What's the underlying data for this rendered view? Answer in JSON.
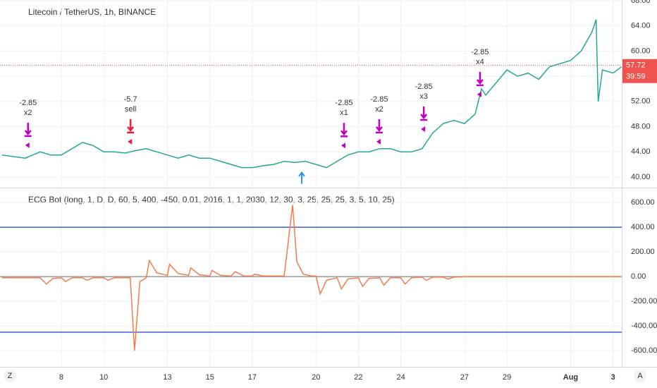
{
  "toolbar": {
    "left": "Z",
    "right": "A"
  },
  "chart_data": [
    {
      "type": "line",
      "title": "Litecoin / TetherUS, 1h, BINANCE",
      "x": [
        5.2,
        6.3,
        7,
        7.5,
        8,
        8.5,
        9,
        9.5,
        10,
        10.5,
        11,
        11.5,
        12,
        12.5,
        13,
        13.5,
        14,
        14.5,
        15,
        15.5,
        16,
        16.5,
        17,
        17.5,
        18,
        18.5,
        19,
        19.5,
        20,
        20.5,
        21,
        21.5,
        22,
        22.5,
        23,
        23.5,
        24,
        24.5,
        25,
        25.5,
        26,
        26.5,
        27,
        27.5,
        27.8,
        28,
        28.5,
        29,
        29.5,
        30,
        30.5,
        31,
        31.5,
        32,
        32.5,
        33,
        33.2,
        33.3,
        33.5,
        34,
        34.4
      ],
      "series": [
        {
          "color": "#26a69a",
          "values": [
            43.5,
            43,
            44,
            43.5,
            43.5,
            44.5,
            45.5,
            45,
            44,
            44,
            43.8,
            44.2,
            44.5,
            44,
            43.5,
            43,
            43.5,
            43,
            43,
            42.5,
            42,
            41.5,
            41.5,
            41.8,
            42,
            42.5,
            42.3,
            42.5,
            42,
            41.5,
            42.5,
            43.5,
            44,
            44,
            44.5,
            44.5,
            44,
            44,
            44.5,
            47,
            48.5,
            49,
            48.5,
            50,
            54,
            53,
            55,
            57,
            56,
            56.5,
            55.5,
            57.5,
            58,
            58.5,
            60,
            63,
            65,
            52,
            57,
            56.5,
            57.5
          ]
        }
      ],
      "ylim": [
        38.43,
        68.1
      ],
      "yticks": [
        {
          "value": 40,
          "label": "40.00"
        },
        {
          "value": 44,
          "label": "44.00"
        },
        {
          "value": 48,
          "label": "48.00"
        },
        {
          "value": 52,
          "label": "52.00"
        },
        {
          "value": 56,
          "label": "56.00"
        },
        {
          "value": 60,
          "label": "60.00"
        },
        {
          "value": 64,
          "label": "64.00"
        },
        {
          "value": 68,
          "label": "68.00"
        }
      ],
      "last_price": 57.72,
      "countdown": "39:59",
      "annotations": [
        {
          "lines": [
            "-2.85",
            "x2"
          ],
          "x": 6.43,
          "y": 46.84,
          "color": "#c000c0"
        },
        {
          "lines": [
            "-5.7",
            "sell"
          ],
          "x": 11.26,
          "y": 47.4,
          "color": "#e91e3c"
        },
        {
          "lines": [
            "-2.85",
            "x1"
          ],
          "x": 21.32,
          "y": 46.8,
          "color": "#c000c0"
        },
        {
          "lines": [
            "-2.85",
            "x2"
          ],
          "x": 22.98,
          "y": 47.4,
          "color": "#c000c0"
        },
        {
          "lines": [
            "-2.85",
            "x3"
          ],
          "x": 25.08,
          "y": 49.4,
          "color": "#c000c0"
        },
        {
          "lines": [
            "-2.85",
            "x4"
          ],
          "x": 27.73,
          "y": 54.9,
          "color": "#c000c0"
        }
      ],
      "buy_marker": {
        "x": 19.33,
        "y": 40.7,
        "color": "#2196f3"
      }
    },
    {
      "type": "line",
      "title": "ECG Bot (long, 1, D, D, 60, 5, 400, -450, 0.01, 2016, 1, 1, 2030, 12, 30, 3, 25, 25, 25, 3, 5, 10, 25)",
      "x": [
        5.2,
        6.5,
        7.0,
        7.3,
        7.6,
        8.0,
        8.2,
        8.5,
        9.0,
        9.2,
        9.5,
        10.0,
        10.2,
        10.5,
        11.0,
        11.25,
        11.45,
        11.7,
        12.0,
        12.15,
        12.5,
        13.0,
        13.1,
        13.5,
        14.0,
        14.1,
        14.5,
        15.0,
        15.1,
        15.5,
        16.0,
        16.2,
        16.6,
        17.0,
        17.1,
        17.5,
        18.0,
        18.5,
        18.9,
        19.1,
        19.4,
        19.8,
        20.0,
        20.2,
        20.5,
        21.0,
        21.2,
        21.5,
        22.0,
        22.2,
        22.5,
        23.0,
        23.2,
        23.5,
        24.0,
        24.2,
        24.5,
        25.0,
        25.2,
        25.5,
        26.0,
        26.2,
        26.5,
        27.0,
        30.0,
        34.4
      ],
      "series": [
        {
          "color": "#f57c4a",
          "values": [
            -10,
            -10,
            -10,
            -60,
            -15,
            -10,
            -40,
            -10,
            -10,
            -30,
            -10,
            -10,
            -30,
            -10,
            -10,
            -10,
            -600,
            -40,
            -10,
            130,
            30,
            10,
            100,
            25,
            10,
            70,
            15,
            5,
            50,
            10,
            5,
            40,
            5,
            5,
            20,
            5,
            5,
            5,
            580,
            120,
            20,
            5,
            5,
            -140,
            -30,
            -10,
            -100,
            -20,
            -10,
            -80,
            -15,
            -10,
            -70,
            -10,
            -10,
            -60,
            -10,
            -5,
            -30,
            -5,
            -5,
            -20,
            -5,
            0,
            0,
            0
          ]
        }
      ],
      "hlines": [
        400,
        -450
      ],
      "hline_color": "#3f5fd6",
      "ylim": [
        -731,
        709
      ],
      "yticks": [
        {
          "value": 600,
          "label": "600.00"
        },
        {
          "value": 400,
          "label": "400.00"
        },
        {
          "value": 200,
          "label": "200.00"
        },
        {
          "value": 0,
          "label": "0.00"
        },
        {
          "value": -200,
          "label": "-200.00"
        },
        {
          "value": -400,
          "label": "-400.00"
        },
        {
          "value": -600,
          "label": "-600.00"
        }
      ],
      "xlim": [
        5.11,
        34.41
      ],
      "xticks": [
        8,
        10,
        13,
        15,
        17,
        20,
        22,
        24,
        27,
        29,
        {
          "value": 32,
          "label": "Aug"
        },
        {
          "value": 34,
          "label": "3"
        }
      ],
      "grid": true
    }
  ]
}
